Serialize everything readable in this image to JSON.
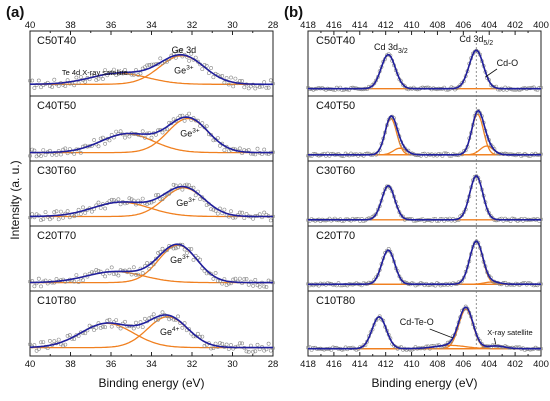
{
  "figure": {
    "y_axis_title": "Intensity (a. u.)"
  },
  "colors": {
    "fit": "#1f1f9e",
    "component": "#f08020",
    "data_points": "#888888",
    "frame": "#222222",
    "reference_line": "#777777"
  },
  "chart_data": [
    {
      "type": "line",
      "panel_label": "(a)",
      "title": "",
      "xlabel": "Binding energy (eV)",
      "ylabel": "Intensity (a. u.)",
      "xlim": [
        40,
        28
      ],
      "x_reversed": true,
      "xticks": [
        40,
        38,
        36,
        34,
        32,
        30,
        28
      ],
      "grid": false,
      "legend": "none",
      "annotations": {
        "ge3d": "Ge 3d",
        "satellite": "Te 4d X-ray satellite",
        "ion_3": "Ge",
        "ion_3_sup": "3+",
        "ion_4": "Ge",
        "ion_4_sup": "4+"
      },
      "subplots": [
        {
          "sample": "C50T40",
          "ion": "3+",
          "components": [
            {
              "center": 32.5,
              "height": 0.52,
              "width": 1.1
            },
            {
              "center": 35.6,
              "height": 0.2,
              "width": 1.4
            }
          ],
          "baseline": 0.14
        },
        {
          "sample": "C40T50",
          "ion": "3+",
          "components": [
            {
              "center": 32.2,
              "height": 0.62,
              "width": 1.0
            },
            {
              "center": 35.2,
              "height": 0.34,
              "width": 1.3
            }
          ],
          "baseline": 0.08
        },
        {
          "sample": "C30T60",
          "ion": "3+",
          "components": [
            {
              "center": 32.4,
              "height": 0.52,
              "width": 1.0
            },
            {
              "center": 35.5,
              "height": 0.26,
              "width": 1.4
            }
          ],
          "baseline": 0.1
        },
        {
          "sample": "C20T70",
          "ion": "3+",
          "components": [
            {
              "center": 32.7,
              "height": 0.68,
              "width": 0.95
            },
            {
              "center": 35.8,
              "height": 0.2,
              "width": 1.4
            }
          ],
          "baseline": 0.08
        },
        {
          "sample": "C10T80",
          "ion": "4+",
          "components": [
            {
              "center": 33.2,
              "height": 0.56,
              "width": 1.0
            },
            {
              "center": 36.2,
              "height": 0.44,
              "width": 1.3
            }
          ],
          "baseline": 0.08
        }
      ]
    },
    {
      "type": "line",
      "panel_label": "(b)",
      "title": "",
      "xlabel": "Binding energy (eV)",
      "ylabel": "",
      "xlim": [
        418,
        400
      ],
      "x_reversed": true,
      "xticks": [
        418,
        416,
        414,
        412,
        410,
        408,
        406,
        404,
        402,
        400
      ],
      "reference_line_x": 405.0,
      "grid": false,
      "legend": "none",
      "annotations": {
        "cd32_main": "Cd 3d",
        "cd32_sub": "3/2",
        "cd52_main": "Cd 3d",
        "cd52_sub": "5/2",
        "cdo": "Cd-O",
        "cdteo": "Cd-Te-O",
        "satellite": "X-ray satellite"
      },
      "subplots": [
        {
          "sample": "C50T40",
          "components": [
            {
              "center": 411.8,
              "height": 0.62,
              "width": 0.55
            },
            {
              "center": 405.0,
              "height": 0.7,
              "width": 0.55
            }
          ],
          "baseline": 0.06
        },
        {
          "sample": "C40T50",
          "components": [
            {
              "center": 411.6,
              "height": 0.66,
              "width": 0.45
            },
            {
              "center": 404.9,
              "height": 0.74,
              "width": 0.45
            },
            {
              "center": 410.9,
              "height": 0.12,
              "width": 0.5
            },
            {
              "center": 404.2,
              "height": 0.16,
              "width": 0.5
            }
          ],
          "baseline": 0.04
        },
        {
          "sample": "C30T60",
          "components": [
            {
              "center": 411.8,
              "height": 0.62,
              "width": 0.5
            },
            {
              "center": 405.0,
              "height": 0.8,
              "width": 0.5
            }
          ],
          "baseline": 0.04
        },
        {
          "sample": "C20T70",
          "components": [
            {
              "center": 411.8,
              "height": 0.62,
              "width": 0.5
            },
            {
              "center": 405.0,
              "height": 0.78,
              "width": 0.5
            },
            {
              "center": 403.8,
              "height": 0.04,
              "width": 0.6
            }
          ],
          "baseline": 0.05
        },
        {
          "sample": "C10T80",
          "components": [
            {
              "center": 412.5,
              "height": 0.58,
              "width": 0.55
            },
            {
              "center": 405.8,
              "height": 0.72,
              "width": 0.55
            },
            {
              "center": 407.0,
              "height": 0.06,
              "width": 1.2
            },
            {
              "center": 403.5,
              "height": 0.05,
              "width": 0.7
            }
          ],
          "baseline": 0.06
        }
      ]
    }
  ]
}
